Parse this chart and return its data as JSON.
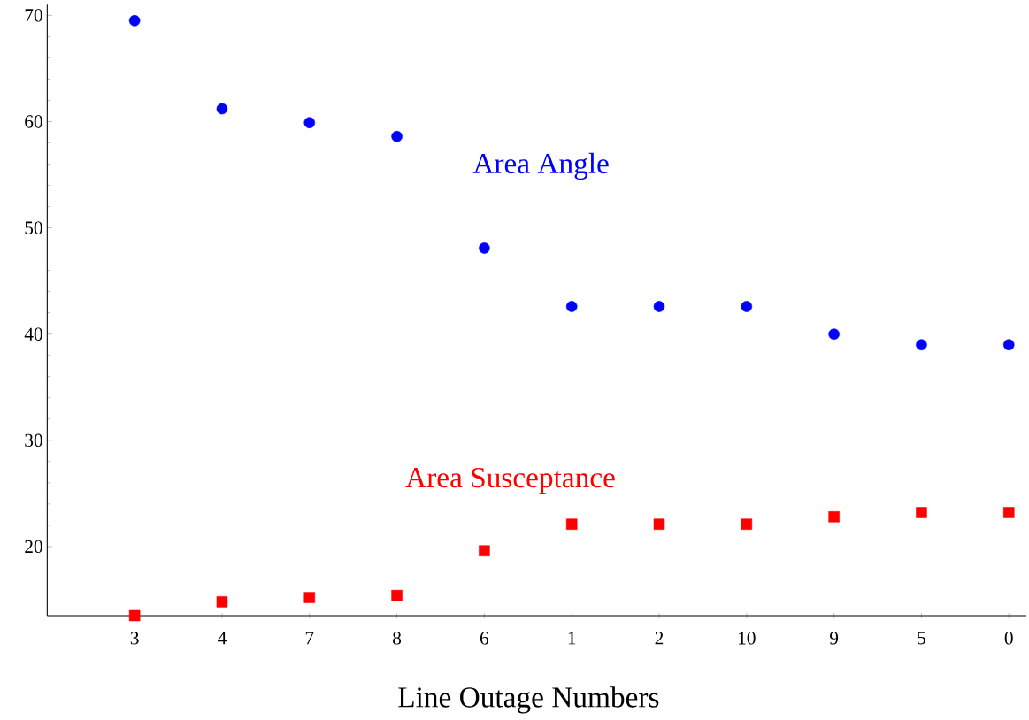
{
  "chart_data": {
    "type": "scatter",
    "xlabel": "Line Outage Numbers",
    "categories": [
      "3",
      "4",
      "7",
      "8",
      "6",
      "1",
      "2",
      "10",
      "9",
      "5",
      "0"
    ],
    "series": [
      {
        "name": "Area Angle",
        "color": "#0000ff",
        "marker": "circle",
        "values": [
          69.5,
          61.2,
          59.9,
          58.6,
          48.1,
          42.6,
          42.6,
          42.6,
          40.0,
          39.0,
          39.0
        ]
      },
      {
        "name": "Area Susceptance",
        "color": "#ff0000",
        "marker": "square",
        "values": [
          13.5,
          14.8,
          15.2,
          15.4,
          19.6,
          22.1,
          22.1,
          22.1,
          22.8,
          23.2,
          23.2
        ]
      }
    ],
    "ylim": [
      13.5,
      71
    ],
    "yticks": [
      20,
      30,
      40,
      50,
      60,
      70
    ],
    "grid": false
  }
}
